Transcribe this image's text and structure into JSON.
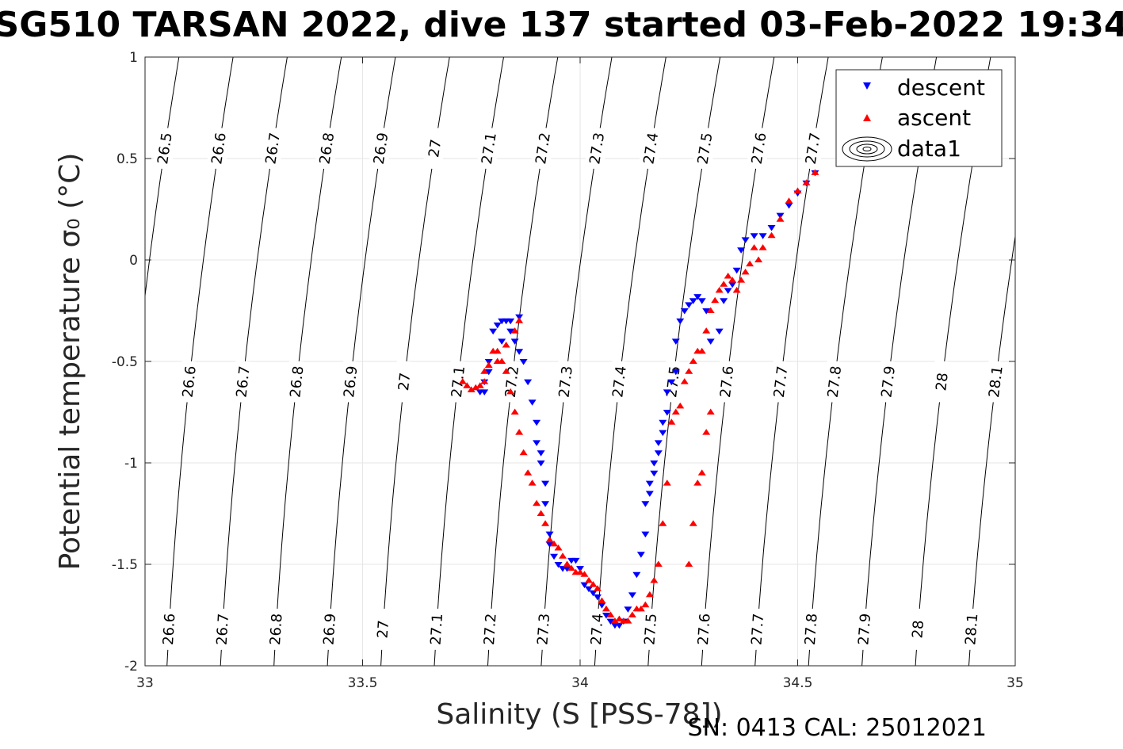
{
  "figure": {
    "title": "SG510 TARSAN 2022, dive 137 started 03-Feb-2022 19:34",
    "xlabel": "Salinity (S [PSS-78])",
    "ylabel": "Potential temperature σ₀ (°C)",
    "footer": "SN: 0413  CAL: 25012021"
  },
  "legend": {
    "items": [
      {
        "label": "descent",
        "color": "#0000ff",
        "marker": "triangle-down"
      },
      {
        "label": "ascent",
        "color": "#ff0000",
        "marker": "triangle-up"
      },
      {
        "label": "data1",
        "marker": "contour-icon"
      }
    ]
  },
  "colors": {
    "descent": "#0000ff",
    "ascent": "#ff0000",
    "contour": "#000000",
    "grid": "#e6e6e6",
    "axis": "#262626"
  },
  "chart_data": {
    "type": "scatter",
    "title": "SG510 TARSAN 2022, dive 137 started 03-Feb-2022 19:34",
    "xlabel": "Salinity (S [PSS-78])",
    "ylabel": "Potential temperature σ₀ (°C)",
    "xlim": [
      33,
      35
    ],
    "ylim": [
      -2,
      1
    ],
    "xticks": [
      33,
      33.5,
      34,
      34.5,
      35
    ],
    "yticks": [
      -2,
      -1.5,
      -1,
      -0.5,
      0,
      0.5,
      1
    ],
    "grid": true,
    "legend_position": "top-right",
    "contours": {
      "name": "data1",
      "levels": [
        26.5,
        26.6,
        26.7,
        26.8,
        26.9,
        27,
        27.1,
        27.2,
        27.3,
        27.4,
        27.5,
        27.6,
        27.7,
        27.8,
        27.9,
        28,
        28.1
      ],
      "labels_bottom": [
        "26.6",
        "26.7",
        "26.8",
        "26.9",
        "27",
        "27.1",
        "27.2",
        "27.3",
        "27.4",
        "27.5",
        "27.6",
        "27.7",
        "27.8",
        "27.9",
        "28",
        "28.1"
      ],
      "labels_middle": [
        "26.6",
        "26.7",
        "26.8",
        "26.9",
        "27",
        "27.1",
        "27.2",
        "27.3",
        "27.4",
        "27.5",
        "27.6",
        "27.7",
        "27.8",
        "27.9",
        "28",
        "28.1"
      ],
      "labels_top": [
        "26.5",
        "26.6",
        "26.7",
        "26.8",
        "26.9",
        "27",
        "27.1",
        "27.2",
        "27.3",
        "27.4",
        "27.5",
        "27.6",
        "27.7"
      ]
    },
    "series": [
      {
        "name": "descent",
        "marker": "triangle-down",
        "x": [
          34.54,
          34.52,
          34.5,
          34.48,
          34.46,
          34.44,
          34.42,
          34.4,
          34.38,
          34.37,
          34.36,
          34.35,
          34.34,
          34.33,
          34.32,
          34.3,
          34.29,
          34.28,
          34.27,
          34.26,
          34.25,
          34.24,
          34.23,
          34.22,
          34.22,
          34.21,
          34.2,
          34.2,
          34.19,
          34.19,
          34.18,
          34.18,
          34.17,
          34.17,
          34.16,
          34.16,
          34.15,
          34.15,
          34.14,
          34.13,
          34.12,
          34.11,
          34.1,
          34.09,
          34.08,
          34.07,
          34.06,
          34.05,
          34.04,
          34.03,
          34.02,
          34.01,
          34.0,
          33.99,
          33.98,
          33.97,
          33.96,
          33.95,
          33.94,
          33.93,
          33.93,
          33.92,
          33.92,
          33.91,
          33.91,
          33.9,
          33.9,
          33.89,
          33.88,
          33.87,
          33.86,
          33.85,
          33.84,
          33.83,
          33.82,
          33.81,
          33.8,
          33.79,
          33.78,
          33.77,
          33.78,
          33.79,
          33.82,
          33.84,
          33.86
        ],
        "y": [
          0.43,
          0.38,
          0.33,
          0.27,
          0.22,
          0.16,
          0.12,
          0.12,
          0.1,
          0.05,
          -0.05,
          -0.12,
          -0.15,
          -0.2,
          -0.35,
          -0.4,
          -0.25,
          -0.2,
          -0.18,
          -0.2,
          -0.22,
          -0.25,
          -0.3,
          -0.4,
          -0.55,
          -0.6,
          -0.65,
          -0.75,
          -0.8,
          -0.85,
          -0.9,
          -0.95,
          -1.0,
          -1.05,
          -1.1,
          -1.15,
          -1.2,
          -1.35,
          -1.45,
          -1.55,
          -1.65,
          -1.72,
          -1.78,
          -1.8,
          -1.8,
          -1.78,
          -1.75,
          -1.7,
          -1.66,
          -1.64,
          -1.62,
          -1.6,
          -1.52,
          -1.48,
          -1.48,
          -1.52,
          -1.52,
          -1.5,
          -1.46,
          -1.4,
          -1.35,
          -1.2,
          -1.1,
          -1.0,
          -0.95,
          -0.9,
          -0.8,
          -0.7,
          -0.6,
          -0.5,
          -0.45,
          -0.4,
          -0.35,
          -0.3,
          -0.3,
          -0.32,
          -0.35,
          -0.5,
          -0.65,
          -0.65,
          -0.6,
          -0.55,
          -0.4,
          -0.3,
          -0.28
        ]
      },
      {
        "name": "ascent",
        "marker": "triangle-up",
        "x": [
          34.54,
          34.52,
          34.5,
          34.48,
          34.46,
          34.44,
          34.42,
          34.41,
          34.4,
          34.39,
          34.38,
          34.37,
          34.36,
          34.35,
          34.34,
          34.33,
          34.32,
          34.31,
          34.3,
          34.29,
          34.28,
          34.27,
          34.26,
          34.25,
          34.24,
          34.23,
          34.22,
          34.21,
          34.2,
          34.19,
          34.18,
          34.17,
          34.16,
          34.15,
          34.14,
          34.13,
          34.12,
          34.11,
          34.1,
          34.09,
          34.08,
          34.07,
          34.06,
          34.05,
          34.04,
          34.03,
          34.02,
          34.01,
          34.0,
          33.99,
          33.98,
          33.97,
          33.96,
          33.95,
          33.94,
          33.93,
          33.92,
          33.91,
          33.9,
          33.89,
          33.88,
          33.87,
          33.86,
          33.85,
          33.84,
          33.83,
          33.82,
          33.81,
          33.8,
          33.79,
          33.78,
          33.77,
          33.76,
          33.75,
          33.74,
          33.73,
          33.78,
          33.81,
          33.83,
          33.85,
          33.86,
          34.3,
          34.29,
          34.28,
          34.27,
          34.26,
          34.25
        ],
        "y": [
          0.43,
          0.38,
          0.34,
          0.29,
          0.2,
          0.12,
          0.06,
          0.0,
          0.06,
          -0.02,
          -0.06,
          -0.1,
          -0.15,
          -0.1,
          -0.08,
          -0.12,
          -0.15,
          -0.2,
          -0.25,
          -0.35,
          -0.45,
          -0.45,
          -0.5,
          -0.55,
          -0.6,
          -0.72,
          -0.75,
          -0.8,
          -1.1,
          -1.3,
          -1.5,
          -1.58,
          -1.65,
          -1.7,
          -1.72,
          -1.72,
          -1.75,
          -1.78,
          -1.78,
          -1.77,
          -1.78,
          -1.75,
          -1.72,
          -1.68,
          -1.62,
          -1.6,
          -1.58,
          -1.55,
          -1.54,
          -1.54,
          -1.52,
          -1.5,
          -1.46,
          -1.42,
          -1.4,
          -1.38,
          -1.3,
          -1.25,
          -1.2,
          -1.1,
          -1.05,
          -0.95,
          -0.85,
          -0.75,
          -0.65,
          -0.55,
          -0.5,
          -0.45,
          -0.45,
          -0.52,
          -0.6,
          -0.62,
          -0.63,
          -0.64,
          -0.62,
          -0.6,
          -0.55,
          -0.5,
          -0.42,
          -0.35,
          -0.3,
          -0.75,
          -0.85,
          -1.05,
          -1.1,
          -1.3,
          -1.5
        ]
      }
    ]
  }
}
